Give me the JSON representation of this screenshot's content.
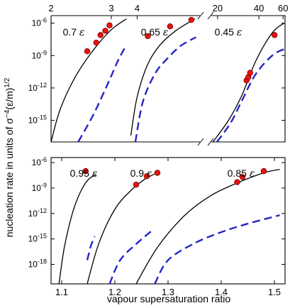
{
  "chart_data": [
    {
      "type": "line",
      "panel": "top",
      "xlabel_top_segments": [
        {
          "xlim": [
            2,
            3.27
          ],
          "ticks": [
            2,
            3
          ],
          "tick_labels": [
            "2",
            "3"
          ]
        },
        {
          "xlim": [
            3.27,
            15
          ],
          "ticks": [
            4
          ],
          "tick_labels": [
            "4"
          ]
        },
        {
          "xlim": [
            18,
            62
          ],
          "ticks": [
            20,
            40,
            60
          ],
          "tick_labels": [
            "20",
            "40",
            "60"
          ]
        }
      ],
      "ylabel": "nucleation rate in units of σ⁻⁴(ε/m)^1/2",
      "yscale": "log",
      "ylim_exp": [
        -17,
        -5.3
      ],
      "yticks_exp": [
        -6,
        -9,
        -12,
        -15
      ],
      "ytick_labels": [
        "10-6",
        "10-9",
        "10-12",
        "10-15"
      ],
      "series": [
        {
          "label": "0.7 ε",
          "simulation_points": [
            [
              2.6,
              -8.6
            ],
            [
              2.75,
              -7.8
            ],
            [
              2.82,
              -7.1
            ],
            [
              2.9,
              -6.7
            ],
            [
              2.97,
              -6.2
            ]
          ],
          "theory_solid": [
            [
              2.0,
              -17.0
            ],
            [
              2.15,
              -14.0
            ],
            [
              2.4,
              -11.0
            ],
            [
              2.7,
              -8.5
            ],
            [
              3.0,
              -6.6
            ],
            [
              3.25,
              -5.6
            ]
          ],
          "theory_dashed": [
            [
              2.45,
              -17.0
            ],
            [
              2.7,
              -14.5
            ],
            [
              2.95,
              -11.5
            ],
            [
              3.1,
              -9.6
            ],
            [
              3.25,
              -8.0
            ]
          ]
        },
        {
          "label": "0.65 ε",
          "simulation_points": [
            [
              5.0,
              -7.2
            ],
            [
              8.0,
              -6.3
            ],
            [
              12.5,
              -5.7
            ]
          ],
          "theory_solid": [
            [
              3.5,
              -16.4
            ],
            [
              4.0,
              -12.8
            ],
            [
              5.0,
              -9.8
            ],
            [
              6.5,
              -8.0
            ],
            [
              9.0,
              -6.7
            ],
            [
              13.5,
              -5.6
            ]
          ],
          "theory_dashed": [
            [
              3.85,
              -17.0
            ],
            [
              4.5,
              -13.3
            ],
            [
              5.8,
              -10.7
            ],
            [
              7.5,
              -9.3
            ],
            [
              10.0,
              -8.1
            ],
            [
              13.8,
              -7.3
            ]
          ]
        },
        {
          "label": "0.45 ε",
          "simulation_points": [
            [
              32.5,
              -11.3
            ],
            [
              33.5,
              -11.0
            ],
            [
              34.5,
              -10.6
            ],
            [
              52.0,
              -7.1
            ]
          ],
          "theory_solid": [
            [
              18.5,
              -17.0
            ],
            [
              24.0,
              -15.0
            ],
            [
              30.0,
              -12.7
            ],
            [
              38.0,
              -9.5
            ],
            [
              50.0,
              -6.9
            ],
            [
              61.0,
              -6.0
            ]
          ],
          "theory_dashed": [
            [
              19.8,
              -17.0
            ],
            [
              25.0,
              -15.2
            ],
            [
              30.0,
              -13.2
            ],
            [
              38.0,
              -10.7
            ],
            [
              50.0,
              -9.0
            ],
            [
              61.0,
              -8.4
            ]
          ]
        }
      ],
      "labels": [
        "0.7",
        "ε",
        "0.65",
        "ε",
        "0.45",
        "ε"
      ]
    },
    {
      "type": "line",
      "panel": "bottom",
      "xlabel": "vapour supersaturation ratio",
      "xlim": [
        1.08,
        1.52
      ],
      "xticks": [
        1.1,
        1.2,
        1.3,
        1.4,
        1.5
      ],
      "xtick_labels": [
        "1.1",
        "1.2",
        "1.3",
        "1.4",
        "1.5"
      ],
      "yscale": "log",
      "ylim_exp": [
        -20.3,
        -5.4
      ],
      "yticks_exp": [
        -6,
        -9,
        -12,
        -15,
        -18
      ],
      "ytick_labels": [
        "10-6",
        "10-9",
        "10-12",
        "10-15",
        "10-18"
      ],
      "series": [
        {
          "label": "0.95 ε",
          "simulation_points": [
            [
              1.145,
              -7.0
            ]
          ],
          "theory_solid": [
            [
              1.095,
              -20.3
            ],
            [
              1.105,
              -16.0
            ],
            [
              1.12,
              -12.0
            ],
            [
              1.135,
              -9.5
            ],
            [
              1.15,
              -8.0
            ],
            [
              1.165,
              -7.4
            ]
          ],
          "theory_dashed": [
            [
              1.148,
              -17.5
            ],
            [
              1.155,
              -15.8
            ],
            [
              1.162,
              -14.7
            ]
          ]
        },
        {
          "label": "0.9 ε",
          "simulation_points": [
            [
              1.24,
              -8.6
            ],
            [
              1.26,
              -7.6
            ],
            [
              1.28,
              -7.2
            ]
          ],
          "theory_solid": [
            [
              1.148,
              -20.3
            ],
            [
              1.17,
              -15.5
            ],
            [
              1.2,
              -11.5
            ],
            [
              1.23,
              -9.3
            ],
            [
              1.26,
              -7.8
            ],
            [
              1.285,
              -7.1
            ]
          ],
          "theory_dashed": [
            [
              1.19,
              -20.3
            ],
            [
              1.21,
              -17.5
            ],
            [
              1.24,
              -15.6
            ],
            [
              1.27,
              -14.0
            ]
          ]
        },
        {
          "label": "0.85 ε",
          "simulation_points": [
            [
              1.43,
              -8.3
            ],
            [
              1.44,
              -7.7
            ],
            [
              1.48,
              -7.0
            ]
          ],
          "theory_solid": [
            [
              1.24,
              -20.3
            ],
            [
              1.28,
              -16.0
            ],
            [
              1.33,
              -12.3
            ],
            [
              1.38,
              -9.9
            ],
            [
              1.43,
              -8.4
            ],
            [
              1.48,
              -7.2
            ],
            [
              1.51,
              -6.8
            ]
          ],
          "theory_dashed": [
            [
              1.275,
              -20.3
            ],
            [
              1.3,
              -17.5
            ],
            [
              1.35,
              -15.5
            ],
            [
              1.4,
              -14.2
            ],
            [
              1.45,
              -13.2
            ],
            [
              1.51,
              -12.2
            ]
          ]
        }
      ],
      "labels": [
        "0.95",
        "ε",
        "0.9",
        "ε",
        "0.85",
        "ε"
      ]
    }
  ],
  "colors": {
    "theory_solid": "#000000",
    "theory_dashed": "#2525c8",
    "point_fill": "#e8140c",
    "point_stroke": "#7a0000"
  }
}
